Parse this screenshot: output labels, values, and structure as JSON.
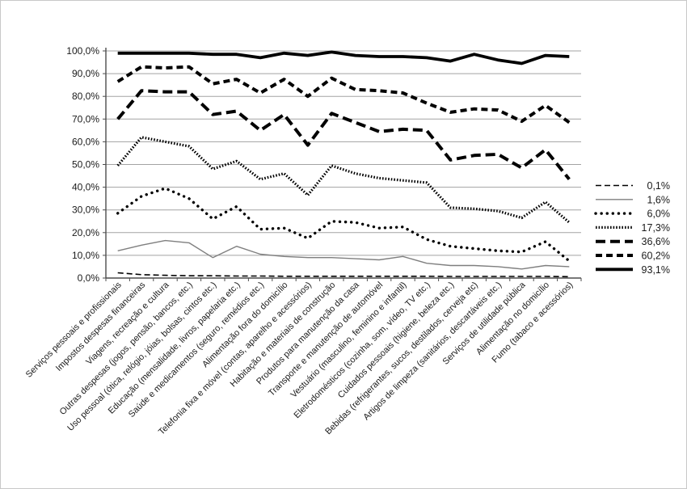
{
  "chart_data": {
    "type": "line",
    "title": "",
    "xlabel": "",
    "ylabel": "",
    "ylim": [
      0,
      100
    ],
    "grid": "horizontal",
    "legend_position": "right",
    "y_tick_labels": [
      "0,0%",
      "10,0%",
      "20,0%",
      "30,0%",
      "40,0%",
      "50,0%",
      "60,0%",
      "70,0%",
      "80,0%",
      "90,0%",
      "100,0%"
    ],
    "categories": [
      "Serviços  pessoais e profissionais",
      "Impostos despesas financeiras",
      "Viagens, recreação e cultura",
      "Outras despesas (jogos, pensão, bancos, etc.)",
      "Uso pessoal (ótica, relógio, jóias, bolsas, cintos  etc.)",
      "Educação (mensalidade, livros, papelaria etc.)",
      "Saúde e medicamentos (seguro, remédios etc.)",
      "Alimentação fora do domicílio",
      "Telefonia fixa e móvel (contas, aparelho e acessórios)",
      "Habitação e materiais de construção",
      "Produtos para manutenção da casa",
      "Transporte e manutenção de automóvel",
      "Vestuário (masculino, feminino e infantil)",
      "Eletrodomésticos (cozinha, som, vídeo, TV etc.)",
      "Cuidados pessoais (higiene, beleza etc.)",
      "Bebidas (refrigerantes, sucos, destilados, cerveja etc)",
      "Artigos de limpeza (sanitários, descartáveis etc.)",
      "Serviços de utilidade pública",
      "Alimentação no domicílio",
      "Fumo (tabaco e acessórios)"
    ],
    "series": [
      {
        "name": "0,1%",
        "style": "thin-dashed",
        "values": [
          2.3,
          1.5,
          1.2,
          1.0,
          1.0,
          0.9,
          0.9,
          0.8,
          0.8,
          0.8,
          0.8,
          0.8,
          0.8,
          0.8,
          0.7,
          0.7,
          0.7,
          0.7,
          0.7,
          0.6
        ]
      },
      {
        "name": "1,6%",
        "style": "thin-solid-gray",
        "values": [
          12,
          14.5,
          16.5,
          15.5,
          9,
          14,
          10.5,
          9.5,
          9,
          9,
          8.5,
          8,
          9.5,
          6.5,
          5.5,
          5.5,
          5,
          4,
          5.5,
          5
        ]
      },
      {
        "name": "6,0%",
        "style": "round-dots",
        "values": [
          28.5,
          36,
          39.5,
          35,
          26,
          31.5,
          21.5,
          22,
          17.5,
          25,
          24.5,
          22,
          22.5,
          17,
          14,
          13,
          12,
          11.5,
          16,
          7.5
        ]
      },
      {
        "name": "17,3%",
        "style": "dense-ticks",
        "values": [
          49.5,
          62,
          60,
          58,
          48,
          51.5,
          43.5,
          46,
          36.5,
          49.5,
          46,
          44,
          43,
          42,
          31,
          30.5,
          29.5,
          26.5,
          33.5,
          24.5
        ]
      },
      {
        "name": "36,6%",
        "style": "thick-long-dash",
        "values": [
          70,
          82.5,
          82,
          82,
          72,
          73.5,
          65,
          72,
          58.5,
          72.5,
          68.5,
          64.5,
          65.5,
          65,
          52,
          54,
          54.5,
          48.5,
          56.5,
          43.5
        ]
      },
      {
        "name": "60,2%",
        "style": "thick-dash",
        "values": [
          86.5,
          93,
          92.5,
          93,
          85.5,
          87.5,
          81.5,
          87.5,
          80,
          88,
          83,
          82.5,
          81.5,
          77,
          73,
          74.5,
          74,
          69,
          76,
          68.5
        ]
      },
      {
        "name": "93,1%",
        "style": "thick-solid",
        "values": [
          99,
          99,
          99,
          99,
          98.5,
          98.5,
          97,
          99,
          98,
          99.5,
          98,
          97.5,
          97.5,
          97,
          95.5,
          98.5,
          96,
          94.5,
          98,
          97.5
        ]
      }
    ],
    "colors": {
      "line_black": "#000000",
      "line_gray": "#7f7f7f",
      "gridline": "#a3a3a3",
      "axis": "#4d4d4d",
      "text": "#1a1a1a"
    }
  }
}
